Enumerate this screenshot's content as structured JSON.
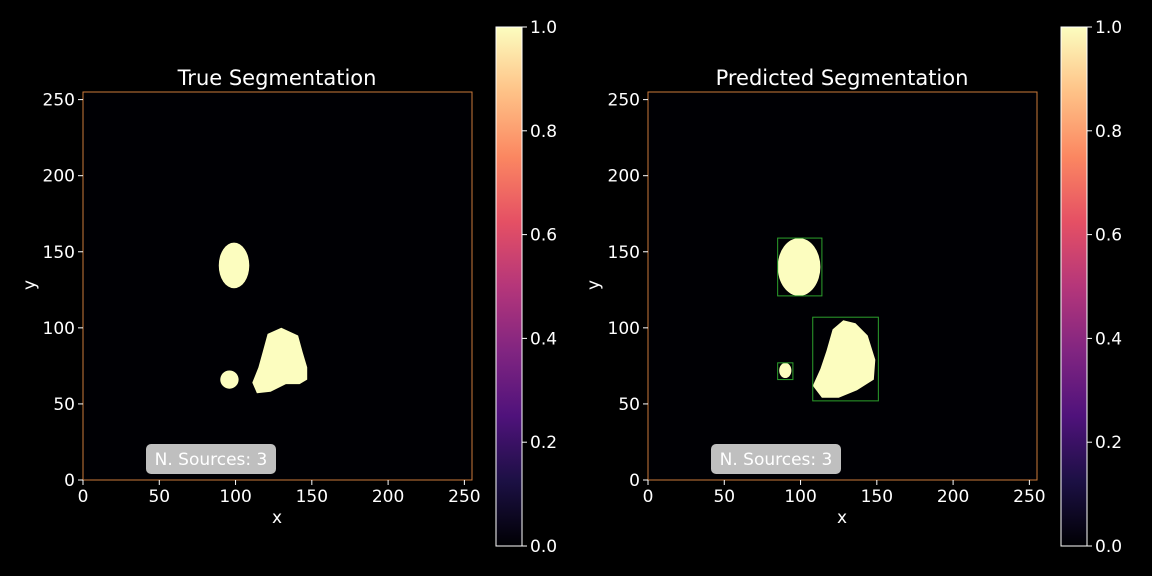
{
  "colors": {
    "background": "#000000",
    "axes_frame": "#cc7a3a",
    "mask": "#fcfdbf",
    "box": "#2ca02c",
    "text": "#ffffff"
  },
  "colormap": "magma",
  "chart_data": [
    {
      "type": "heatmap",
      "title": "True Segmentation",
      "xlabel": "x",
      "ylabel": "y",
      "xlim": [
        0,
        255
      ],
      "ylim": [
        0,
        255
      ],
      "xticks": [
        0,
        50,
        100,
        150,
        200,
        250
      ],
      "yticks": [
        0,
        50,
        100,
        150,
        200,
        250
      ],
      "vmin": 0,
      "vmax": 1,
      "colorbar_ticks": [
        "0.0",
        "0.2",
        "0.4",
        "0.6",
        "0.8",
        "1.0"
      ],
      "annotation": "N. Sources: 3",
      "sources": [
        {
          "shape": "ellipse",
          "cx": 99,
          "cy": 141,
          "rx": 10,
          "ry": 15
        },
        {
          "shape": "ellipse",
          "cx": 96,
          "cy": 66,
          "rx": 6,
          "ry": 6
        },
        {
          "shape": "blob",
          "polygon": [
            [
              130,
              100
            ],
            [
              121,
              96
            ],
            [
              118,
              85
            ],
            [
              115,
              74
            ],
            [
              111,
              64
            ],
            [
              114,
              57
            ],
            [
              123,
              58
            ],
            [
              133,
              63
            ],
            [
              142,
              63
            ],
            [
              147,
              66
            ],
            [
              147,
              74
            ],
            [
              144,
              84
            ],
            [
              141,
              95
            ]
          ]
        }
      ],
      "boxes": []
    },
    {
      "type": "heatmap",
      "title": "Predicted Segmentation",
      "xlabel": "x",
      "ylabel": "y",
      "xlim": [
        0,
        255
      ],
      "ylim": [
        0,
        255
      ],
      "xticks": [
        0,
        50,
        100,
        150,
        200,
        250
      ],
      "yticks": [
        0,
        50,
        100,
        150,
        200,
        250
      ],
      "vmin": 0,
      "vmax": 1,
      "colorbar_ticks": [
        "0.0",
        "0.2",
        "0.4",
        "0.6",
        "0.8",
        "1.0"
      ],
      "annotation": "N. Sources: 3",
      "sources": [
        {
          "shape": "ellipse",
          "cx": 99,
          "cy": 140,
          "rx": 14,
          "ry": 19
        },
        {
          "shape": "ellipse",
          "cx": 90,
          "cy": 72,
          "rx": 4,
          "ry": 5
        },
        {
          "shape": "blob",
          "polygon": [
            [
              128,
              105
            ],
            [
              121,
              99
            ],
            [
              117,
              85
            ],
            [
              113,
              73
            ],
            [
              108,
              62
            ],
            [
              114,
              54
            ],
            [
              125,
              54
            ],
            [
              137,
              59
            ],
            [
              148,
              66
            ],
            [
              149,
              79
            ],
            [
              144,
              95
            ],
            [
              136,
              103
            ]
          ]
        }
      ],
      "boxes": [
        {
          "x0": 85,
          "x1": 114,
          "y0": 121,
          "y1": 159
        },
        {
          "x0": 85,
          "x1": 95,
          "y0": 66,
          "y1": 77
        },
        {
          "x0": 108,
          "x1": 151,
          "y0": 52,
          "y1": 107
        }
      ]
    }
  ]
}
